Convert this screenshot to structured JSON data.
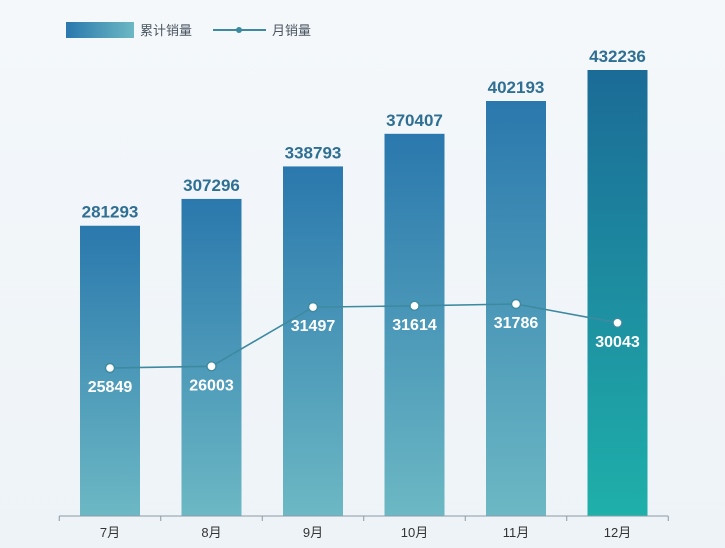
{
  "chart_data": {
    "type": "bar",
    "categories": [
      "7月",
      "8月",
      "9月",
      "10月",
      "11月",
      "12月"
    ],
    "series": [
      {
        "name": "累计销量",
        "type": "bar",
        "values": [
          281293,
          307296,
          338793,
          370407,
          402193,
          432236
        ]
      },
      {
        "name": "月销量",
        "type": "line",
        "values": [
          25849,
          26003,
          31497,
          31614,
          31786,
          30043
        ]
      }
    ],
    "title": "",
    "xlabel": "",
    "ylabel": "",
    "grid": false,
    "legend": "top-left",
    "colors": {
      "bar_top": "#2a78ad",
      "bar_bottom": "#6cb8c4",
      "bar_last_top": "#1b6b97",
      "bar_last_bottom": "#1fb0aa",
      "line": "#3d8aa0",
      "bar_label": "#2f6f93"
    }
  }
}
